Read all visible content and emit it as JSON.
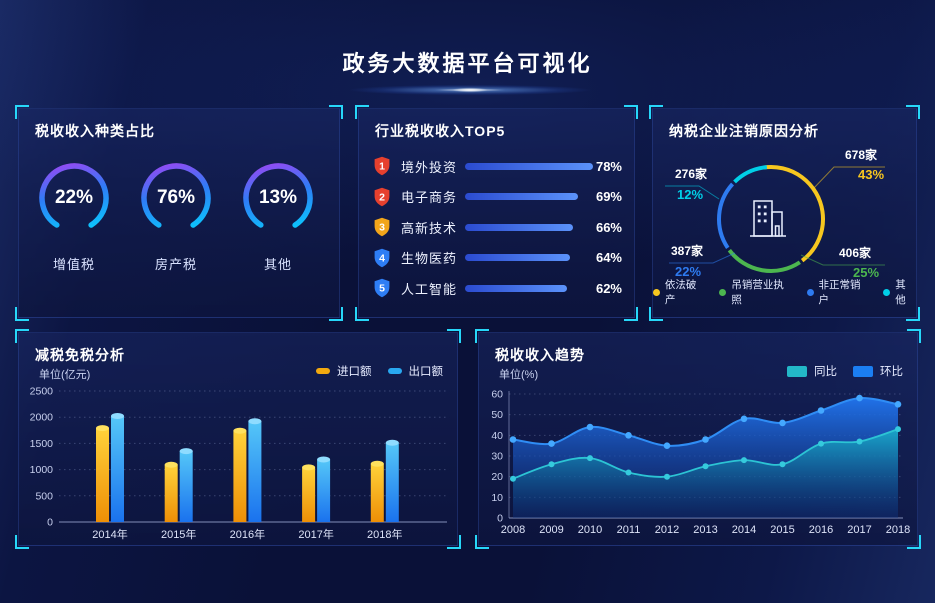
{
  "header": {
    "title": "政务大数据平台可视化"
  },
  "panels": {
    "tax_type": {
      "title": "税收收入种类占比"
    },
    "industry_top5": {
      "title": "行业税收收入TOP5"
    },
    "deregistration": {
      "title": "纳税企业注销原因分析"
    },
    "tax_reduction": {
      "title": "减税免税分析",
      "unit": "单位(亿元)"
    },
    "tax_trend": {
      "title": "税收收入趋势",
      "unit": "单位(%)"
    }
  },
  "accent": {
    "bracket": "#27d7f9",
    "ring_gradient": [
      "#b03cf2",
      "#2f7cf6",
      "#00dcff"
    ]
  },
  "chart_data": [
    {
      "panel": "税收收入种类占比",
      "type": "donut",
      "items": [
        {
          "label": "增值税",
          "value": 22
        },
        {
          "label": "房产税",
          "value": 76
        },
        {
          "label": "其他",
          "value": 13
        }
      ],
      "unit": "%"
    },
    {
      "panel": "行业税收收入TOP5",
      "type": "bar",
      "orientation": "horizontal",
      "categories": [
        "境外投资",
        "电子商务",
        "高新技术",
        "生物医药",
        "人工智能"
      ],
      "values": [
        78,
        69,
        66,
        64,
        62
      ],
      "ranks": [
        1,
        2,
        3,
        4,
        5
      ],
      "badge_colors": [
        "#e6402e",
        "#e6402e",
        "#f2a51a",
        "#2e7ef5",
        "#2e7ef5"
      ],
      "unit": "%"
    },
    {
      "panel": "纳税企业注销原因分析",
      "type": "pie",
      "segments": [
        {
          "label": "依法破产",
          "count": "678家",
          "percent": 43,
          "color": "#f7c71f"
        },
        {
          "label": "吊销营业执照",
          "count": "406家",
          "percent": 25,
          "color": "#4cb64f"
        },
        {
          "label": "非正常销户",
          "count": "387家",
          "percent": 22,
          "color": "#2e7bf0"
        },
        {
          "label": "其他",
          "count": "276家",
          "percent": 12,
          "color": "#00cfe8"
        }
      ],
      "legend_position": "bottom"
    },
    {
      "panel": "减税免税分析",
      "type": "bar",
      "categories": [
        "2014年",
        "2015年",
        "2016年",
        "2017年",
        "2018年"
      ],
      "series": [
        {
          "name": "进口额",
          "color": "#f2a90f",
          "values": [
            1850,
            1150,
            1800,
            1100,
            1170
          ]
        },
        {
          "name": "出口额",
          "color": "#29a8f0",
          "values": [
            2080,
            1410,
            1980,
            1250,
            1570
          ]
        }
      ],
      "ylabel": "单位(亿元)",
      "ylim": [
        0,
        2500
      ],
      "yticks": [
        0,
        500,
        1000,
        1500,
        2000,
        2500
      ],
      "grid": true
    },
    {
      "panel": "税收收入趋势",
      "type": "area",
      "x": [
        "2008",
        "2009",
        "2010",
        "2011",
        "2012",
        "2013",
        "2014",
        "2015",
        "2016",
        "2017",
        "2018"
      ],
      "series": [
        {
          "name": "同比",
          "color": "#23b8c8",
          "values": [
            19,
            26,
            29,
            22,
            20,
            25,
            28,
            26,
            36,
            37,
            43
          ]
        },
        {
          "name": "环比",
          "color": "#1b7ef2",
          "values": [
            38,
            36,
            44,
            40,
            35,
            38,
            48,
            46,
            52,
            58,
            55
          ]
        }
      ],
      "ylabel": "单位(%)",
      "ylim": [
        0,
        60
      ],
      "yticks": [
        0,
        10,
        20,
        30,
        40,
        50,
        60
      ],
      "grid": true,
      "legend_position": "top-right"
    }
  ]
}
